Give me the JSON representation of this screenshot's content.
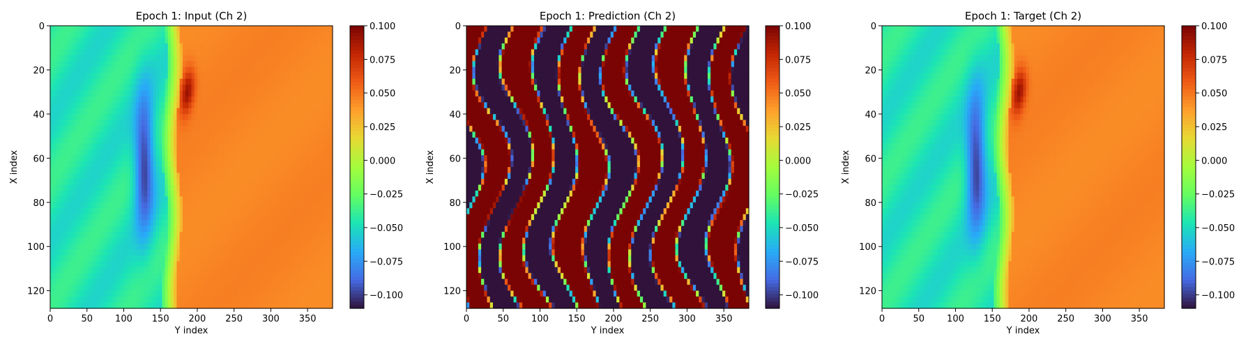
{
  "colormap": "turbo",
  "chart_data": [
    {
      "type": "heatmap",
      "title": "Epoch 1: Input (Ch 2)",
      "xlabel": "Y index",
      "ylabel": "X index",
      "xlim": [
        0,
        384
      ],
      "ylim": [
        128,
        0
      ],
      "xticks": [
        "0",
        "50",
        "100",
        "150",
        "200",
        "250",
        "300",
        "350"
      ],
      "yticks": [
        "0",
        "20",
        "40",
        "60",
        "80",
        "100",
        "120"
      ],
      "colorbar": {
        "range": [
          -0.11,
          0.1
        ],
        "ticks": [
          "0.100",
          "0.075",
          "0.050",
          "0.025",
          "0.000",
          "−0.025",
          "−0.050",
          "−0.075",
          "−0.100"
        ]
      },
      "field": "smooth"
    },
    {
      "type": "heatmap",
      "title": "Epoch 1: Prediction (Ch 2)",
      "xlabel": "Y index",
      "ylabel": "X index",
      "xlim": [
        0,
        384
      ],
      "ylim": [
        128,
        0
      ],
      "xticks": [
        "0",
        "50",
        "100",
        "150",
        "200",
        "250",
        "300",
        "350"
      ],
      "yticks": [
        "0",
        "20",
        "40",
        "60",
        "80",
        "100",
        "120"
      ],
      "colorbar": {
        "range": [
          -0.11,
          0.1
        ],
        "ticks": [
          "0.100",
          "0.075",
          "0.050",
          "0.025",
          "0.000",
          "−0.025",
          "−0.050",
          "−0.075",
          "−0.100"
        ]
      },
      "field": "saturated"
    },
    {
      "type": "heatmap",
      "title": "Epoch 1: Target (Ch 2)",
      "xlabel": "Y index",
      "ylabel": "X index",
      "xlim": [
        0,
        384
      ],
      "ylim": [
        128,
        0
      ],
      "xticks": [
        "0",
        "50",
        "100",
        "150",
        "200",
        "250",
        "300",
        "350"
      ],
      "yticks": [
        "0",
        "20",
        "40",
        "60",
        "80",
        "100",
        "120"
      ],
      "colorbar": {
        "range": [
          -0.11,
          0.1
        ],
        "ticks": [
          "0.100",
          "0.075",
          "0.050",
          "0.025",
          "0.000",
          "−0.025",
          "−0.050",
          "−0.075",
          "−0.100"
        ]
      },
      "field": "smooth"
    }
  ]
}
